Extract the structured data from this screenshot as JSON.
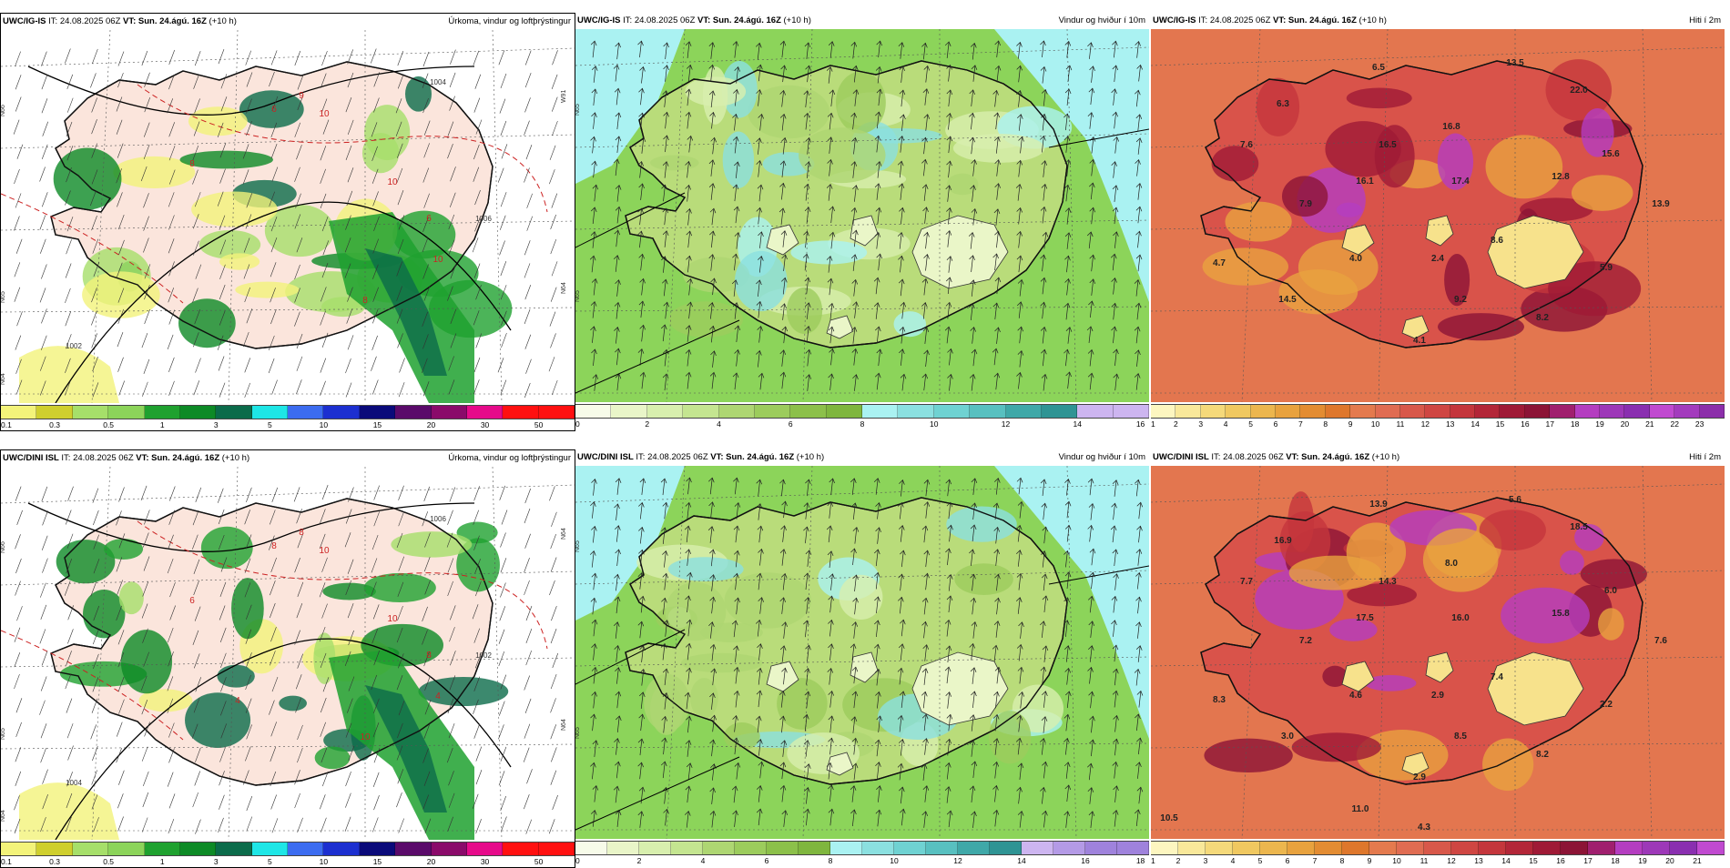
{
  "panels": [
    {
      "id": "r0c0",
      "kind": "precip",
      "model": "UWC/IG-IS",
      "it_label": "IT:",
      "it": "24.08.2025 06Z",
      "vt_label": "VT:",
      "vt": "Sun. 24.ágú. 16Z",
      "lead": "(+10 h)",
      "title": "Úrkoma, vindur og loftþrýstingur",
      "colorbar": {
        "colors": [
          "#f3f37a",
          "#cfcf2e",
          "#a6df6a",
          "#8cd45a",
          "#1fa12f",
          "#0d8a26",
          "#0b6b4a",
          "#1ee6e6",
          "#3c6cf0",
          "#1c2fd0",
          "#0a0a7a",
          "#5a0a6a",
          "#8a0a6a",
          "#e60a8a",
          "#ff1010",
          "#ff1010"
        ],
        "labels": [
          "0.1",
          "0.3",
          "0.5",
          "1",
          "3",
          "5",
          "10",
          "15",
          "20",
          "30",
          "50"
        ]
      },
      "value_labels": [
        "6",
        "9",
        "10",
        "8",
        "10",
        "6",
        "10",
        "8"
      ],
      "isobar_labels": [
        "1004",
        "1006",
        "1002"
      ],
      "side_labels": [
        "N66",
        "N65",
        "N64",
        "W91",
        "N64"
      ]
    },
    {
      "id": "r0c1",
      "kind": "wind",
      "model": "UWC/IG-IS",
      "it_label": "IT:",
      "it": "24.08.2025 06Z",
      "vt_label": "VT:",
      "vt": "Sun. 24.ágú. 16Z",
      "lead": "(+10 h)",
      "title": "Vindur og hviður í 10m",
      "colorbar": {
        "colors": [
          "#f7fbe9",
          "#e9f5c8",
          "#d8efae",
          "#c4e590",
          "#aed672",
          "#9ccc5c",
          "#8cc04a",
          "#7fb63e",
          "#aaf2f2",
          "#8be0e0",
          "#6fd2d2",
          "#58c0c0",
          "#3fa8a8",
          "#2f9494",
          "#cdb5f0",
          "#cdb5f0"
        ],
        "labels": [
          "0",
          "2",
          "4",
          "6",
          "8",
          "10",
          "12",
          "14",
          "16"
        ]
      },
      "value_labels": [],
      "side_labels": [
        "N65",
        "N65"
      ]
    },
    {
      "id": "r0c2",
      "kind": "temp",
      "model": "UWC/IG-IS",
      "it_label": "IT:",
      "it": "24.08.2025 06Z",
      "vt_label": "VT:",
      "vt": "Sun. 24.ágú. 16Z",
      "lead": "(+10 h)",
      "title": "Hiti í 2m",
      "colorbar": {
        "colors": [
          "#fdf6c0",
          "#f9e89a",
          "#f5d97a",
          "#f0c860",
          "#ecb64e",
          "#e8a23e",
          "#e38c32",
          "#de772c",
          "#e47a4e",
          "#e06c52",
          "#d8584a",
          "#cf4642",
          "#c4363c",
          "#b32638",
          "#9f1a36",
          "#8c1436",
          "#a01f6e",
          "#b43dc0",
          "#9d38b8",
          "#8a2fb0",
          "#c04ad0",
          "#a33bbd",
          "#8c2faa"
        ],
        "labels": [
          "1",
          "2",
          "3",
          "4",
          "5",
          "6",
          "7",
          "8",
          "9",
          "10",
          "11",
          "12",
          "13",
          "14",
          "15",
          "16",
          "17",
          "18",
          "19",
          "20",
          "21",
          "22",
          "23"
        ]
      },
      "value_labels": [
        "6.5",
        "13.5",
        "22.0",
        "6.3",
        "16.8",
        "7.6",
        "16.5",
        "15.6",
        "16.1",
        "17.4",
        "12.8",
        "7.9",
        "13.9",
        "4.7",
        "8.6",
        "4.0",
        "2.4",
        "5.9",
        "14.5",
        "9.2",
        "8.2",
        "4.1"
      ]
    },
    {
      "id": "r1c0",
      "kind": "precip",
      "model": "UWC/DINI ISL",
      "it_label": "IT:",
      "it": "24.08.2025 06Z",
      "vt_label": "VT:",
      "vt": "Sun. 24.ágú. 16Z",
      "lead": "(+10 h)",
      "title": "Úrkoma, vindur og loftþrýstingur",
      "colorbar": {
        "colors": [
          "#f3f37a",
          "#cfcf2e",
          "#a6df6a",
          "#8cd45a",
          "#1fa12f",
          "#0d8a26",
          "#0b6b4a",
          "#1ee6e6",
          "#3c6cf0",
          "#1c2fd0",
          "#0a0a7a",
          "#5a0a6a",
          "#8a0a6a",
          "#e60a8a",
          "#ff1010",
          "#ff1010"
        ],
        "labels": [
          "0.1",
          "0.3",
          "0.5",
          "1",
          "3",
          "5",
          "10",
          "15",
          "20",
          "30",
          "50"
        ]
      },
      "value_labels": [
        "8",
        "8",
        "10",
        "6",
        "10",
        "8",
        "4",
        "10",
        "4"
      ],
      "isobar_labels": [
        "1006",
        "1002",
        "1004"
      ],
      "side_labels": [
        "N66",
        "N65",
        "N64",
        "N64",
        "N64"
      ]
    },
    {
      "id": "r1c1",
      "kind": "wind",
      "model": "UWC/DINI ISL",
      "it_label": "IT:",
      "it": "24.08.2025 06Z",
      "vt_label": "VT:",
      "vt": "Sun. 24.ágú. 16Z",
      "lead": "(+10 h)",
      "title": "Vindur og hviður í 10m",
      "colorbar": {
        "colors": [
          "#f7fbe9",
          "#e9f5c8",
          "#d8efae",
          "#c4e590",
          "#aed672",
          "#9ccc5c",
          "#8cc04a",
          "#7fb63e",
          "#aaf2f2",
          "#8be0e0",
          "#6fd2d2",
          "#58c0c0",
          "#3fa8a8",
          "#2f9494",
          "#cdb5f0",
          "#b49ae6",
          "#9f82dc",
          "#9f82dc"
        ],
        "labels": [
          "0",
          "2",
          "4",
          "6",
          "8",
          "10",
          "12",
          "14",
          "16",
          "18"
        ]
      },
      "value_labels": [],
      "side_labels": [
        "N65",
        "N65"
      ]
    },
    {
      "id": "r1c2",
      "kind": "temp",
      "model": "UWC/DINI ISL",
      "it_label": "IT:",
      "it": "24.08.2025 06Z",
      "vt_label": "VT:",
      "vt": "Sun. 24.ágú. 16Z",
      "lead": "(+10 h)",
      "title": "Hiti í 2m",
      "colorbar": {
        "colors": [
          "#fdf6c0",
          "#f9e89a",
          "#f5d97a",
          "#f0c860",
          "#ecb64e",
          "#e8a23e",
          "#e38c32",
          "#de772c",
          "#e47a4e",
          "#e06c52",
          "#d8584a",
          "#cf4642",
          "#c4363c",
          "#b32638",
          "#9f1a36",
          "#8c1436",
          "#a01f6e",
          "#b43dc0",
          "#9d38b8",
          "#8a2fb0",
          "#c04ad0"
        ],
        "labels": [
          "1",
          "2",
          "3",
          "4",
          "5",
          "6",
          "7",
          "8",
          "9",
          "10",
          "11",
          "12",
          "13",
          "14",
          "15",
          "16",
          "17",
          "18",
          "19",
          "20",
          "21"
        ]
      },
      "value_labels": [
        "13.9",
        "5.6",
        "18.5",
        "16.9",
        "8.0",
        "7.7",
        "14.3",
        "6.0",
        "17.5",
        "16.0",
        "15.8",
        "7.2",
        "7.6",
        "8.3",
        "7.4",
        "4.6",
        "2.9",
        "2.2",
        "3.0",
        "8.5",
        "8.2",
        "2.9",
        "11.0",
        "10.5",
        "4.3"
      ]
    }
  ]
}
